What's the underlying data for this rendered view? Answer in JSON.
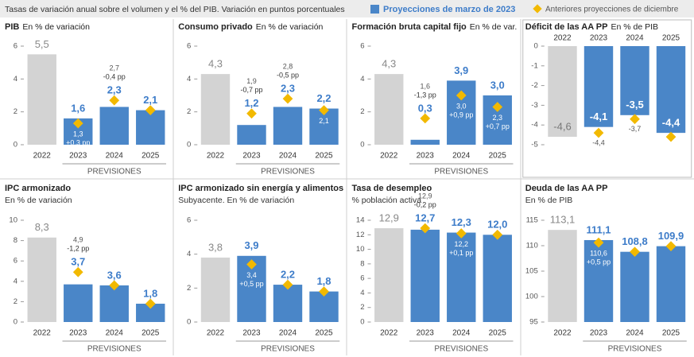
{
  "header": {
    "title": "Tasas de variación anual sobre el volumen y el % del PIB. Variación en puntos porcentuales",
    "legend": [
      {
        "name": "Proyecciones de marzo de 2023",
        "color": "#4a86c8"
      },
      {
        "name": "Anteriores proyecciones de diciembre",
        "color": "#f2b900"
      }
    ],
    "base_color": "#d3d3d3"
  },
  "chart_data": [
    {
      "type": "bar",
      "title": "PIB",
      "unit": "En % de variación",
      "categories": [
        "2022",
        "2023",
        "2024",
        "2025"
      ],
      "group_label": "PREVISIONES",
      "ylim": [
        0,
        6
      ],
      "yticks": [
        0,
        2,
        4,
        6
      ],
      "values": [
        5.5,
        1.6,
        2.3,
        2.1
      ],
      "value_labels": [
        "5,5",
        "1,6",
        "2,3",
        "2,1"
      ],
      "previous": {
        "values": [
          null,
          1.3,
          2.7,
          2.1
        ],
        "value_labels": [
          null,
          "1,3",
          "2,7",
          null
        ],
        "change_labels": [
          null,
          "+0,3 pp",
          "-0,4 pp",
          null
        ]
      }
    },
    {
      "type": "bar",
      "title": "Consumo privado",
      "unit": "En % de variación",
      "categories": [
        "2022",
        "2023",
        "2024",
        "2025"
      ],
      "group_label": "PREVISIONES",
      "ylim": [
        0,
        6
      ],
      "yticks": [
        0,
        2,
        4,
        6
      ],
      "values": [
        4.3,
        1.2,
        2.3,
        2.2
      ],
      "value_labels": [
        "4,3",
        "1,2",
        "2,3",
        "2,2"
      ],
      "previous": {
        "values": [
          null,
          1.9,
          2.8,
          2.1
        ],
        "value_labels": [
          null,
          "1,9",
          "2,8",
          "2,1"
        ],
        "change_labels": [
          null,
          "-0,7 pp",
          "-0,5 pp",
          null
        ]
      }
    },
    {
      "type": "bar",
      "title": "Formación bruta capital fijo",
      "unit": "En % de var.",
      "categories": [
        "2022",
        "2023",
        "2024",
        "2025"
      ],
      "group_label": "PREVISIONES",
      "ylim": [
        0,
        6
      ],
      "yticks": [
        0,
        2,
        4,
        6
      ],
      "values": [
        4.3,
        0.3,
        3.9,
        3.0
      ],
      "value_labels": [
        "4,3",
        "0,3",
        "3,9",
        "3,0"
      ],
      "previous": {
        "values": [
          null,
          1.6,
          3.0,
          2.3
        ],
        "value_labels": [
          null,
          "1,6",
          "3,0",
          "2,3"
        ],
        "change_labels": [
          null,
          "-1,3 pp",
          "+0,9 pp",
          "+0,7 pp"
        ]
      }
    },
    {
      "type": "bar",
      "title": "Déficit de las AA PP",
      "unit": "En % de PIB",
      "categories": [
        "2022",
        "2023",
        "2024",
        "2025"
      ],
      "ylim": [
        -5,
        0
      ],
      "yticks": [
        0,
        -1,
        -2,
        -3,
        -4,
        -5
      ],
      "values": [
        -4.6,
        -4.1,
        -3.5,
        -4.4
      ],
      "value_labels": [
        "-4,6",
        "-4,1",
        "-3,5",
        "-4,4"
      ],
      "previous": {
        "values": [
          null,
          -4.4,
          -3.7,
          -4.6
        ],
        "value_labels": [
          null,
          "-4,4",
          "-3,7",
          null
        ],
        "change_labels": [
          null,
          null,
          null,
          null
        ]
      }
    },
    {
      "type": "bar",
      "title": "IPC armonizado",
      "unit": "En % de variación",
      "categories": [
        "2022",
        "2023",
        "2024",
        "2025"
      ],
      "group_label": "PREVISIONES",
      "ylim": [
        0,
        10
      ],
      "yticks": [
        0,
        2,
        4,
        6,
        8,
        10
      ],
      "values": [
        8.3,
        3.7,
        3.6,
        1.8
      ],
      "value_labels": [
        "8,3",
        "3,7",
        "3,6",
        "1,8"
      ],
      "previous": {
        "values": [
          null,
          4.9,
          3.6,
          1.8
        ],
        "value_labels": [
          null,
          "4,9",
          null,
          null
        ],
        "change_labels": [
          null,
          "-1,2 pp",
          null,
          null
        ]
      }
    },
    {
      "type": "bar",
      "title": "IPC armonizado sin energía y alimentos",
      "unit": "Subyacente. En % de variación",
      "categories": [
        "2022",
        "2023",
        "2024",
        "2025"
      ],
      "group_label": "PREVISIONES",
      "ylim": [
        0,
        6
      ],
      "yticks": [
        0,
        2,
        4,
        6
      ],
      "values": [
        3.8,
        3.9,
        2.2,
        1.8
      ],
      "value_labels": [
        "3,8",
        "3,9",
        "2,2",
        "1,8"
      ],
      "previous": {
        "values": [
          null,
          3.4,
          2.2,
          1.8
        ],
        "value_labels": [
          null,
          "3,4",
          null,
          null
        ],
        "change_labels": [
          null,
          "+0,5 pp",
          null,
          null
        ]
      }
    },
    {
      "type": "bar",
      "title": "Tasa de desempleo",
      "unit": "% población activa",
      "categories": [
        "2022",
        "2023",
        "2024",
        "2025"
      ],
      "group_label": "PREVISIONES",
      "ylim": [
        0,
        14
      ],
      "yticks": [
        0,
        2,
        4,
        6,
        8,
        10,
        12,
        14
      ],
      "values": [
        12.9,
        12.7,
        12.3,
        12.0
      ],
      "value_labels": [
        "12,9",
        "12,7",
        "12,3",
        "12,0"
      ],
      "previous": {
        "values": [
          null,
          12.9,
          12.2,
          12.0
        ],
        "value_labels": [
          null,
          "12,9",
          "12,2",
          null
        ],
        "change_labels": [
          null,
          "-0,2 pp",
          "+0,1 pp",
          null
        ]
      }
    },
    {
      "type": "bar",
      "title": "Deuda de las AA PP",
      "unit": "En % de PIB",
      "categories": [
        "2022",
        "2023",
        "2024",
        "2025"
      ],
      "group_label": "PREVISIONES",
      "ylim": [
        95,
        115
      ],
      "yticks": [
        95,
        100,
        105,
        110,
        115
      ],
      "values": [
        113.1,
        111.1,
        108.8,
        109.9
      ],
      "value_labels": [
        "113,1",
        "111,1",
        "108,8",
        "109,9"
      ],
      "previous": {
        "values": [
          null,
          110.6,
          108.8,
          109.9
        ],
        "value_labels": [
          null,
          "110,6",
          null,
          null
        ],
        "change_labels": [
          null,
          "+0,5 pp",
          null,
          null
        ]
      }
    }
  ]
}
